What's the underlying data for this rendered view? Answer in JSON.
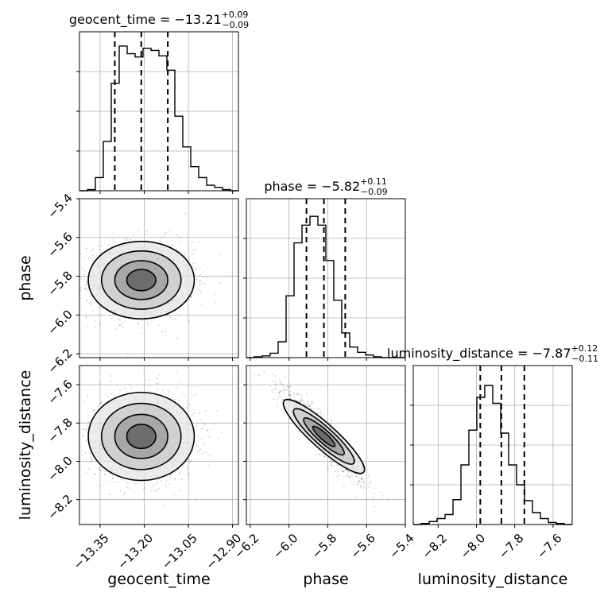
{
  "chart_data": {
    "type": "corner",
    "parameters": [
      {
        "name": "geocent_time",
        "label": "geocent_time",
        "title_prefix": "geocent_time = ",
        "median": "−13.21",
        "plus": "+0.09",
        "minus": "−0.09",
        "range": [
          -13.42,
          -12.88
        ],
        "ticks": [
          -13.35,
          -13.2,
          -13.05,
          -12.9
        ],
        "tick_labels": [
          "−13.35",
          "−13.20",
          "−13.05",
          "−12.90"
        ],
        "quantiles": [
          -13.3,
          -13.21,
          -13.12
        ],
        "hist": {
          "edges_start": -13.42,
          "bin_width": 0.027,
          "counts": [
            0,
            1,
            12,
            45,
            98,
            132,
            125,
            122,
            130,
            128,
            123,
            110,
            68,
            40,
            22,
            12,
            5,
            3,
            1,
            0
          ]
        },
        "hist_ymax": 145
      },
      {
        "name": "phase",
        "label": "phase",
        "title_prefix": "phase = ",
        "median": "−5.82",
        "plus": "+0.11",
        "minus": "−0.09",
        "range": [
          -6.22,
          -5.4
        ],
        "ticks": [
          -6.2,
          -6.0,
          -5.8,
          -5.6,
          -5.4
        ],
        "tick_labels": [
          "−6.2",
          "−6.0",
          "−5.8",
          "−5.6",
          "−5.4"
        ],
        "y_ticks": [
          -5.4,
          -5.6,
          -5.8,
          -6.0,
          -6.2
        ],
        "y_tick_labels": [
          "−5.4",
          "−5.6",
          "−5.8",
          "−6.0",
          "−6.2"
        ],
        "quantiles": [
          -5.91,
          -5.82,
          -5.71
        ],
        "hist": {
          "edges_start": -6.22,
          "bin_width": 0.041,
          "counts": [
            0,
            1,
            2,
            5,
            18,
            70,
            130,
            150,
            160,
            150,
            110,
            65,
            28,
            12,
            6,
            3,
            1,
            0,
            0,
            0
          ]
        },
        "hist_ymax": 180
      },
      {
        "name": "luminosity_distance",
        "label": "luminosity_distance",
        "title_prefix": "luminosity_distance = ",
        "median": "−7.87",
        "plus": "+0.12",
        "minus": "−0.11",
        "range": [
          -8.33,
          -7.5
        ],
        "ticks": [
          -8.2,
          -8.0,
          -7.8,
          -7.6
        ],
        "tick_labels": [
          "−8.2",
          "−8.0",
          "−7.8",
          "−7.6"
        ],
        "y_ticks": [
          -7.6,
          -7.8,
          -8.0,
          -8.2
        ],
        "y_tick_labels": [
          "−7.6",
          "−7.8",
          "−8.0",
          "−8.2"
        ],
        "quantiles": [
          -7.98,
          -7.87,
          -7.75
        ],
        "hist": {
          "edges_start": -8.33,
          "bin_width": 0.0415,
          "counts": [
            0,
            1,
            3,
            6,
            10,
            25,
            60,
            95,
            128,
            140,
            122,
            92,
            60,
            40,
            24,
            12,
            6,
            2,
            1,
            0
          ]
        },
        "hist_ymax": 160
      }
    ],
    "grid": true
  }
}
